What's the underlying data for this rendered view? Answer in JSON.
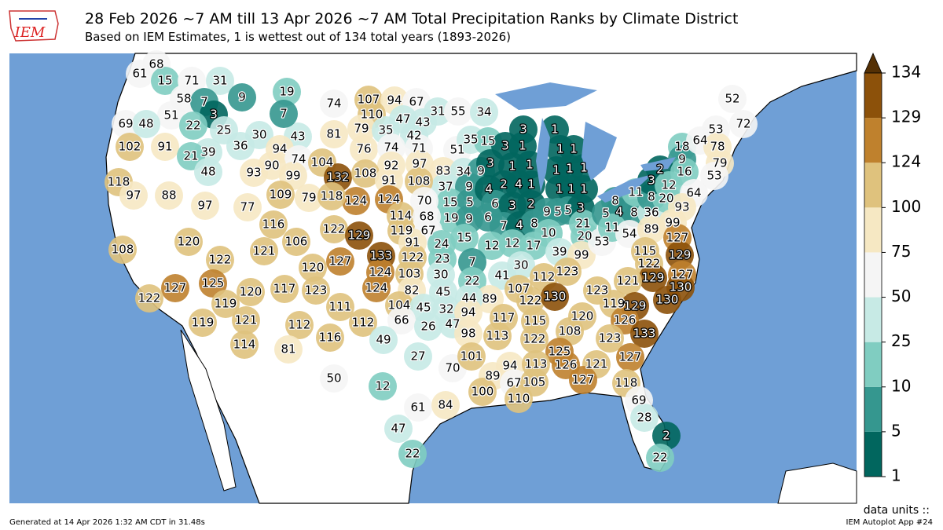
{
  "header": {
    "logo_text": "IEM",
    "title": "28 Feb 2026 ~7 AM till 13 Apr 2026 ~7 AM Total Precipitation Ranks by Climate District",
    "subtitle": "Based on IEM Estimates, 1 is wettest out of 134 total years (1893-2026)"
  },
  "map": {
    "district_ranks": [
      68,
      61,
      15,
      71,
      31,
      58,
      7,
      3,
      51,
      69,
      48,
      22,
      25,
      102,
      91,
      39,
      21,
      36,
      30,
      43,
      48,
      118,
      97,
      88,
      97,
      9,
      19,
      7,
      74,
      81,
      94,
      74,
      104,
      90,
      99,
      93,
      132,
      107,
      94,
      67,
      110,
      47,
      43,
      79,
      35,
      42,
      76,
      74,
      71,
      31,
      55,
      34,
      51,
      35,
      15,
      83,
      34,
      9,
      37,
      9,
      15,
      5,
      19,
      9,
      92,
      97,
      108,
      91,
      108,
      124,
      124,
      70,
      114,
      68,
      119,
      67,
      109,
      79,
      118,
      77,
      116,
      122,
      129,
      106,
      121,
      127,
      120,
      133,
      124,
      120,
      108,
      122,
      127,
      125,
      122,
      119,
      120,
      121,
      119,
      114,
      91,
      24,
      122,
      23,
      103,
      30,
      82,
      117,
      123,
      111,
      112,
      116,
      81,
      124,
      112,
      45,
      104,
      45,
      32,
      66,
      26,
      47,
      49,
      27,
      50,
      12,
      70,
      61,
      84,
      47,
      22,
      3,
      1,
      3,
      1,
      3,
      1,
      1,
      4,
      2,
      4,
      1,
      6,
      3,
      2,
      6,
      7,
      4,
      8,
      15,
      12,
      12,
      17,
      7,
      22,
      41,
      30,
      1,
      1,
      1,
      1,
      1,
      1,
      1,
      1,
      9,
      5,
      5,
      3,
      10,
      21,
      20,
      5,
      4,
      8,
      8,
      36,
      11,
      8,
      20,
      39,
      99,
      53,
      11,
      54,
      18,
      9,
      2,
      16,
      3,
      12,
      64,
      93,
      99,
      89,
      127,
      52,
      72,
      53,
      64,
      78,
      79,
      53,
      115,
      122,
      129,
      129,
      127,
      130,
      130,
      121,
      123,
      112,
      107,
      89,
      44,
      122,
      130,
      123,
      119,
      129,
      126,
      133,
      94,
      117,
      115,
      120,
      108,
      98,
      113,
      122,
      123,
      125,
      127,
      101,
      94,
      113,
      126,
      121,
      89,
      67,
      105,
      127,
      118,
      100,
      110,
      69,
      28,
      2,
      22
    ]
  },
  "colorbar": {
    "ticks": [
      1,
      5,
      10,
      25,
      50,
      75,
      100,
      124,
      129,
      134
    ],
    "colors": [
      "#01665e",
      "#35978f",
      "#80cdc1",
      "#c7eae5",
      "#f5f5f5",
      "#f6e8c3",
      "#dfc27d",
      "#bf812d",
      "#8c510a"
    ],
    "extend_color": "#543005",
    "units_label": "data units ::"
  },
  "footer": {
    "generated": "Generated at 14 Apr 2026 1:32 AM CDT in 31.48s",
    "app": "IEM Autoplot App #24"
  }
}
